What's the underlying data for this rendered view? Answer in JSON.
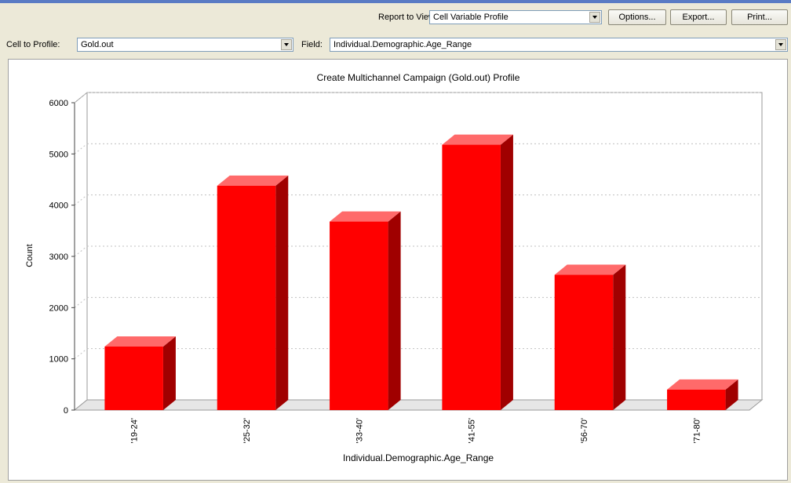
{
  "toolbar": {
    "report_label": "Report to View:",
    "report_value": "Cell Variable Profile",
    "options_label": "Options...",
    "export_label": "Export...",
    "print_label": "Print..."
  },
  "filters": {
    "cell_label": "Cell to Profile:",
    "cell_value": "Gold.out",
    "field_label": "Field:",
    "field_value": "Individual.Demographic.Age_Range"
  },
  "chart_data": {
    "type": "bar",
    "title": "Create Multichannel Campaign (Gold.out) Profile",
    "xlabel": "Individual.Demographic.Age_Range",
    "ylabel": "Count",
    "categories": [
      "'19-24'",
      "'25-32'",
      "'33-40'",
      "'41-55'",
      "'56-70'",
      "'71-80'"
    ],
    "values": [
      1240,
      4380,
      3680,
      5180,
      2640,
      400
    ],
    "ylim": [
      0,
      6000
    ],
    "yticks": [
      0,
      1000,
      2000,
      3000,
      4000,
      5000,
      6000
    ],
    "grid": true,
    "bar_color": "#ff0000"
  }
}
